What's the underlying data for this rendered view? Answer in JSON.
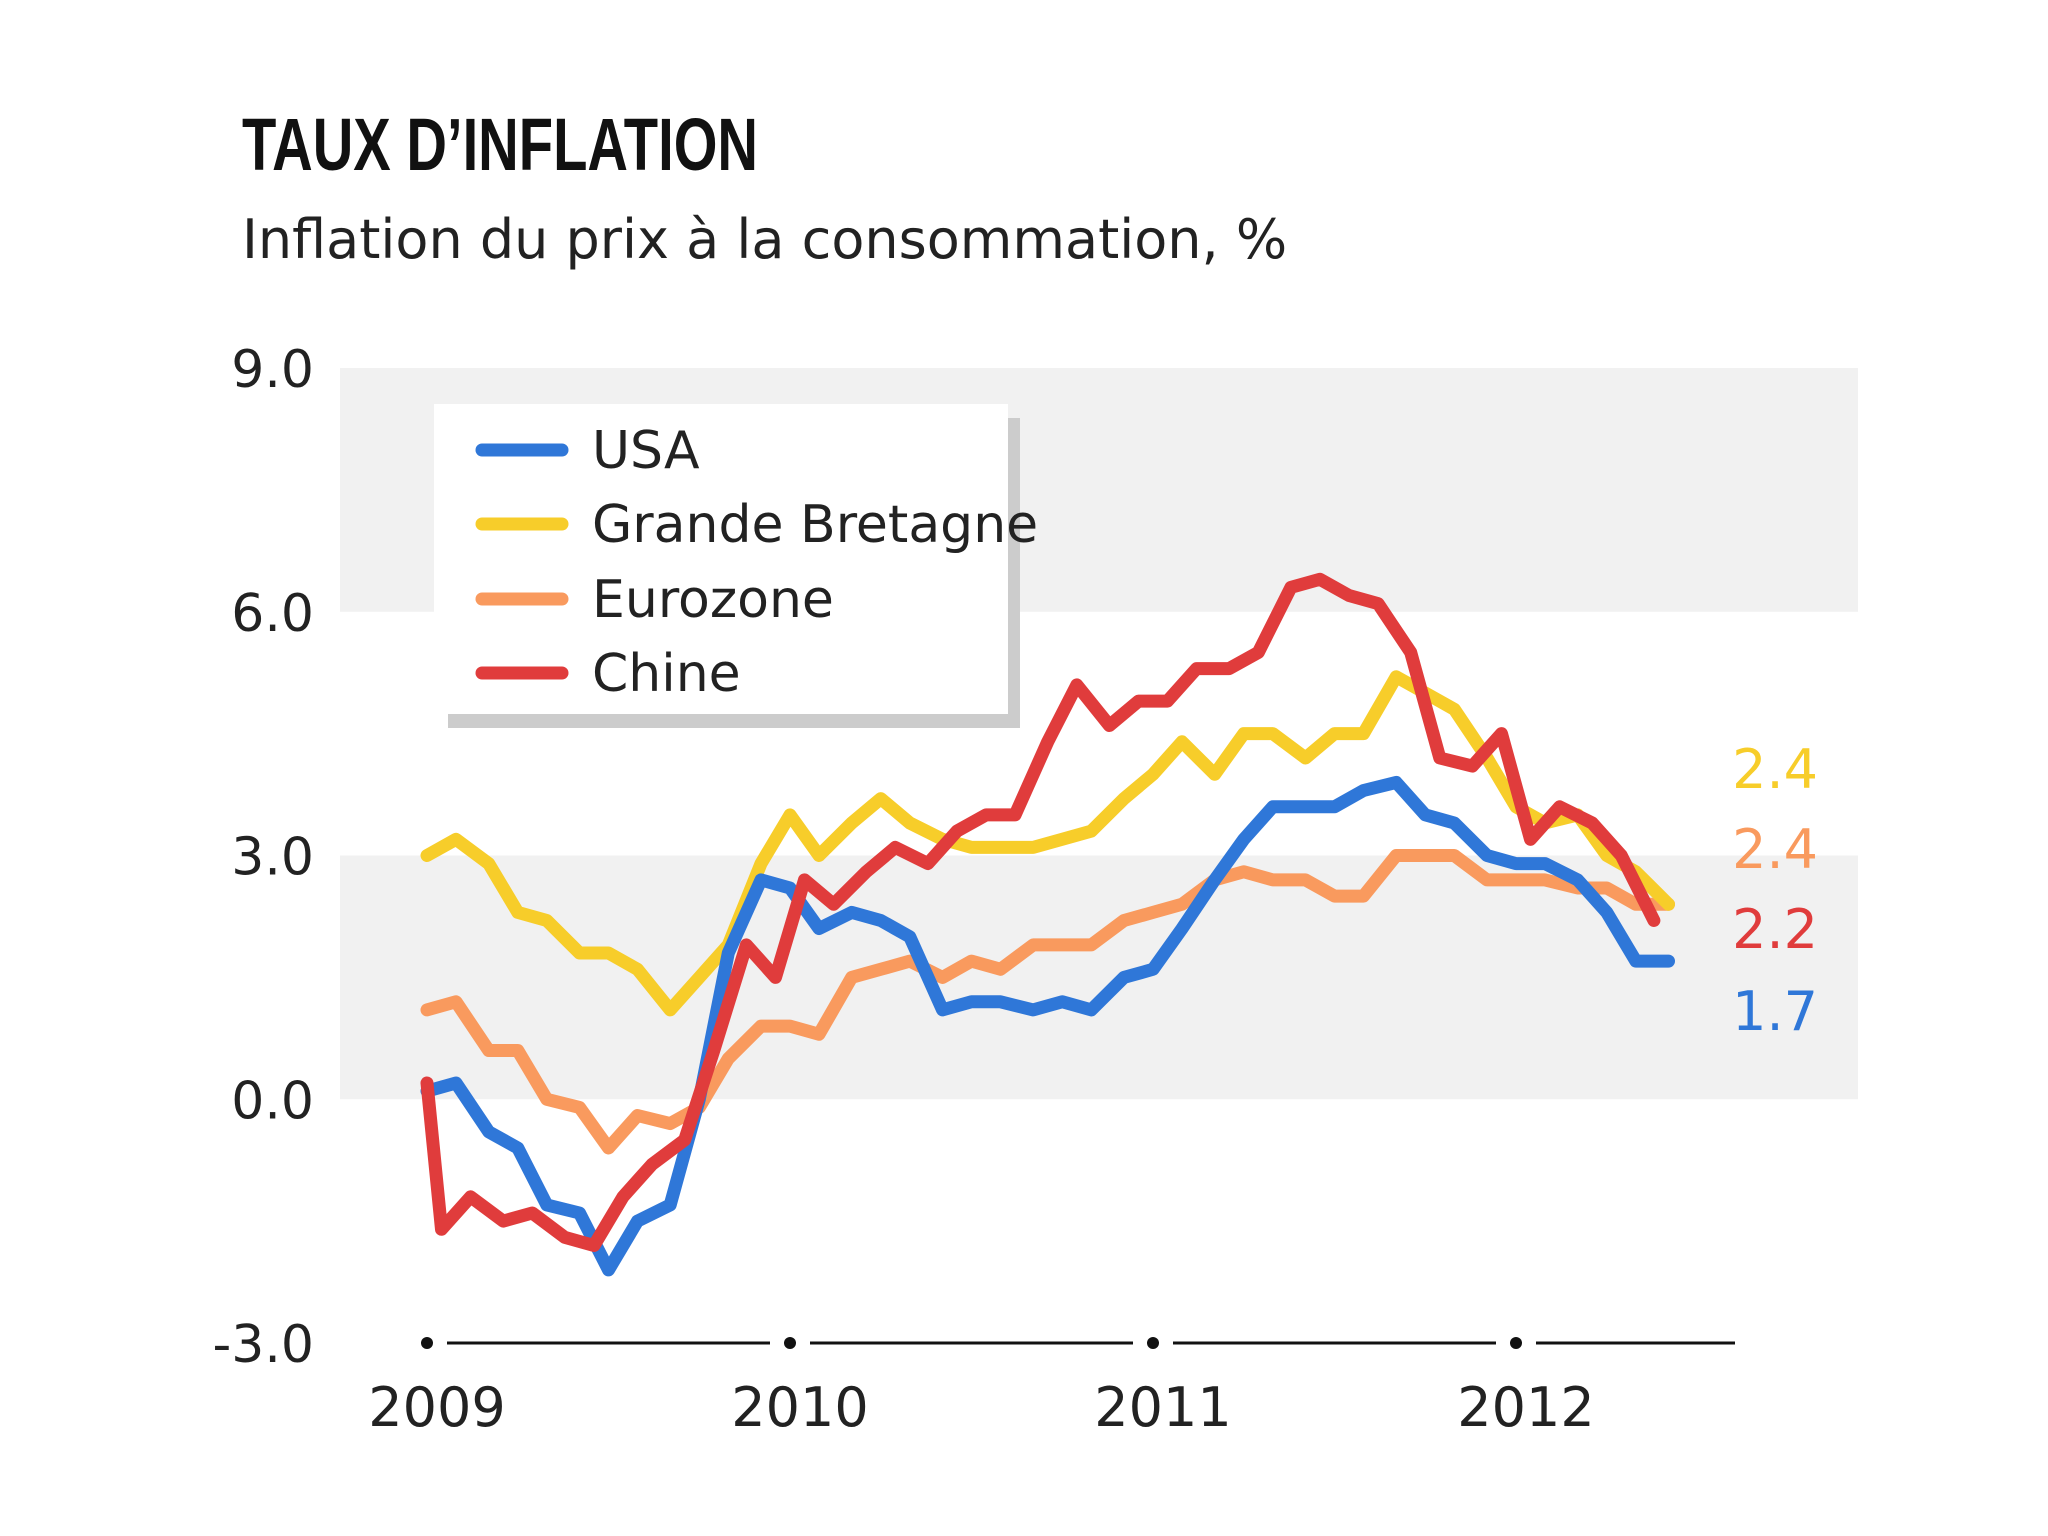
{
  "chart_data": {
    "type": "line",
    "title": "TAUX D’INFLATION",
    "subtitle": "Inflation du prix à la consommation, %",
    "ylabel": "",
    "xlabel": "",
    "ylim": [
      -3.0,
      9.0
    ],
    "yticks": [
      "9.0",
      "6.0",
      "3.0",
      "0.0",
      "-3.0"
    ],
    "ytick_values": [
      9,
      6,
      3,
      0,
      -3
    ],
    "xlim": [
      2009,
      2012.65
    ],
    "xticks": [
      "2009",
      "2010",
      "2011",
      "2012"
    ],
    "xtick_values": [
      2009,
      2010,
      2011,
      2012
    ],
    "shaded_bands": [
      [
        6.0,
        9.0
      ],
      [
        0.0,
        3.0
      ]
    ],
    "grid": false,
    "legend_position": "top-left",
    "series": [
      {
        "name": "USA",
        "color": "#2f77d8",
        "end_label": "1.7",
        "points": [
          [
            2009.0,
            0.1
          ],
          [
            2009.08,
            0.2
          ],
          [
            2009.17,
            -0.4
          ],
          [
            2009.25,
            -0.6
          ],
          [
            2009.33,
            -1.3
          ],
          [
            2009.42,
            -1.4
          ],
          [
            2009.5,
            -2.1
          ],
          [
            2009.58,
            -1.5
          ],
          [
            2009.67,
            -1.3
          ],
          [
            2009.75,
            0.0
          ],
          [
            2009.83,
            1.8
          ],
          [
            2009.92,
            2.7
          ],
          [
            2010.0,
            2.6
          ],
          [
            2010.08,
            2.1
          ],
          [
            2010.17,
            2.3
          ],
          [
            2010.25,
            2.2
          ],
          [
            2010.33,
            2.0
          ],
          [
            2010.42,
            1.1
          ],
          [
            2010.5,
            1.2
          ],
          [
            2010.58,
            1.2
          ],
          [
            2010.67,
            1.1
          ],
          [
            2010.75,
            1.2
          ],
          [
            2010.83,
            1.1
          ],
          [
            2010.92,
            1.5
          ],
          [
            2011.0,
            1.6
          ],
          [
            2011.08,
            2.1
          ],
          [
            2011.17,
            2.7
          ],
          [
            2011.25,
            3.2
          ],
          [
            2011.33,
            3.6
          ],
          [
            2011.42,
            3.6
          ],
          [
            2011.5,
            3.6
          ],
          [
            2011.58,
            3.8
          ],
          [
            2011.67,
            3.9
          ],
          [
            2011.75,
            3.5
          ],
          [
            2011.83,
            3.4
          ],
          [
            2011.92,
            3.0
          ],
          [
            2012.0,
            2.9
          ],
          [
            2012.08,
            2.9
          ],
          [
            2012.17,
            2.7
          ],
          [
            2012.25,
            2.3
          ],
          [
            2012.33,
            1.7
          ],
          [
            2012.42,
            1.7
          ]
        ]
      },
      {
        "name": "Grande Bretagne",
        "color": "#f7cd2a",
        "end_label": "2.4",
        "points": [
          [
            2009.0,
            3.0
          ],
          [
            2009.08,
            3.2
          ],
          [
            2009.17,
            2.9
          ],
          [
            2009.25,
            2.3
          ],
          [
            2009.33,
            2.2
          ],
          [
            2009.42,
            1.8
          ],
          [
            2009.5,
            1.8
          ],
          [
            2009.58,
            1.6
          ],
          [
            2009.67,
            1.1
          ],
          [
            2009.75,
            1.5
          ],
          [
            2009.83,
            1.9
          ],
          [
            2009.92,
            2.9
          ],
          [
            2010.0,
            3.5
          ],
          [
            2010.08,
            3.0
          ],
          [
            2010.17,
            3.4
          ],
          [
            2010.25,
            3.7
          ],
          [
            2010.33,
            3.4
          ],
          [
            2010.42,
            3.2
          ],
          [
            2010.5,
            3.1
          ],
          [
            2010.58,
            3.1
          ],
          [
            2010.67,
            3.1
          ],
          [
            2010.75,
            3.2
          ],
          [
            2010.83,
            3.3
          ],
          [
            2010.92,
            3.7
          ],
          [
            2011.0,
            4.0
          ],
          [
            2011.08,
            4.4
          ],
          [
            2011.17,
            4.0
          ],
          [
            2011.25,
            4.5
          ],
          [
            2011.33,
            4.5
          ],
          [
            2011.42,
            4.2
          ],
          [
            2011.5,
            4.5
          ],
          [
            2011.58,
            4.5
          ],
          [
            2011.67,
            5.2
          ],
          [
            2011.75,
            5.0
          ],
          [
            2011.83,
            4.8
          ],
          [
            2011.92,
            4.2
          ],
          [
            2012.0,
            3.6
          ],
          [
            2012.08,
            3.4
          ],
          [
            2012.17,
            3.5
          ],
          [
            2012.25,
            3.0
          ],
          [
            2012.33,
            2.8
          ],
          [
            2012.42,
            2.4
          ]
        ]
      },
      {
        "name": "Eurozone",
        "color": "#f99a5e",
        "end_label": "2.4",
        "points": [
          [
            2009.0,
            1.1
          ],
          [
            2009.08,
            1.2
          ],
          [
            2009.17,
            0.6
          ],
          [
            2009.25,
            0.6
          ],
          [
            2009.33,
            0.0
          ],
          [
            2009.42,
            -0.1
          ],
          [
            2009.5,
            -0.6
          ],
          [
            2009.58,
            -0.2
          ],
          [
            2009.67,
            -0.3
          ],
          [
            2009.75,
            -0.1
          ],
          [
            2009.83,
            0.5
          ],
          [
            2009.92,
            0.9
          ],
          [
            2010.0,
            0.9
          ],
          [
            2010.08,
            0.8
          ],
          [
            2010.17,
            1.5
          ],
          [
            2010.25,
            1.6
          ],
          [
            2010.33,
            1.7
          ],
          [
            2010.42,
            1.5
          ],
          [
            2010.5,
            1.7
          ],
          [
            2010.58,
            1.6
          ],
          [
            2010.67,
            1.9
          ],
          [
            2010.75,
            1.9
          ],
          [
            2010.83,
            1.9
          ],
          [
            2010.92,
            2.2
          ],
          [
            2011.0,
            2.3
          ],
          [
            2011.08,
            2.4
          ],
          [
            2011.17,
            2.7
          ],
          [
            2011.25,
            2.8
          ],
          [
            2011.33,
            2.7
          ],
          [
            2011.42,
            2.7
          ],
          [
            2011.5,
            2.5
          ],
          [
            2011.58,
            2.5
          ],
          [
            2011.67,
            3.0
          ],
          [
            2011.75,
            3.0
          ],
          [
            2011.83,
            3.0
          ],
          [
            2011.92,
            2.7
          ],
          [
            2012.0,
            2.7
          ],
          [
            2012.08,
            2.7
          ],
          [
            2012.17,
            2.6
          ],
          [
            2012.25,
            2.6
          ],
          [
            2012.33,
            2.4
          ],
          [
            2012.42,
            2.4
          ]
        ]
      },
      {
        "name": "Chine",
        "color": "#e03c3c",
        "end_label": "2.2",
        "points": [
          [
            2009.0,
            0.2
          ],
          [
            2009.04,
            -1.6
          ],
          [
            2009.12,
            -1.2
          ],
          [
            2009.21,
            -1.5
          ],
          [
            2009.29,
            -1.4
          ],
          [
            2009.38,
            -1.7
          ],
          [
            2009.46,
            -1.8
          ],
          [
            2009.54,
            -1.2
          ],
          [
            2009.62,
            -0.8
          ],
          [
            2009.71,
            -0.5
          ],
          [
            2009.79,
            0.6
          ],
          [
            2009.88,
            1.9
          ],
          [
            2009.96,
            1.5
          ],
          [
            2010.04,
            2.7
          ],
          [
            2010.12,
            2.4
          ],
          [
            2010.21,
            2.8
          ],
          [
            2010.29,
            3.1
          ],
          [
            2010.38,
            2.9
          ],
          [
            2010.46,
            3.3
          ],
          [
            2010.54,
            3.5
          ],
          [
            2010.62,
            3.5
          ],
          [
            2010.71,
            4.4
          ],
          [
            2010.79,
            5.1
          ],
          [
            2010.88,
            4.6
          ],
          [
            2010.96,
            4.9
          ],
          [
            2011.04,
            4.9
          ],
          [
            2011.12,
            5.3
          ],
          [
            2011.21,
            5.3
          ],
          [
            2011.29,
            5.5
          ],
          [
            2011.38,
            6.3
          ],
          [
            2011.46,
            6.4
          ],
          [
            2011.54,
            6.2
          ],
          [
            2011.62,
            6.1
          ],
          [
            2011.71,
            5.5
          ],
          [
            2011.79,
            4.2
          ],
          [
            2011.88,
            4.1
          ],
          [
            2011.96,
            4.5
          ],
          [
            2012.04,
            3.2
          ],
          [
            2012.12,
            3.6
          ],
          [
            2012.21,
            3.4
          ],
          [
            2012.29,
            3.0
          ],
          [
            2012.38,
            2.2
          ]
        ]
      }
    ]
  }
}
